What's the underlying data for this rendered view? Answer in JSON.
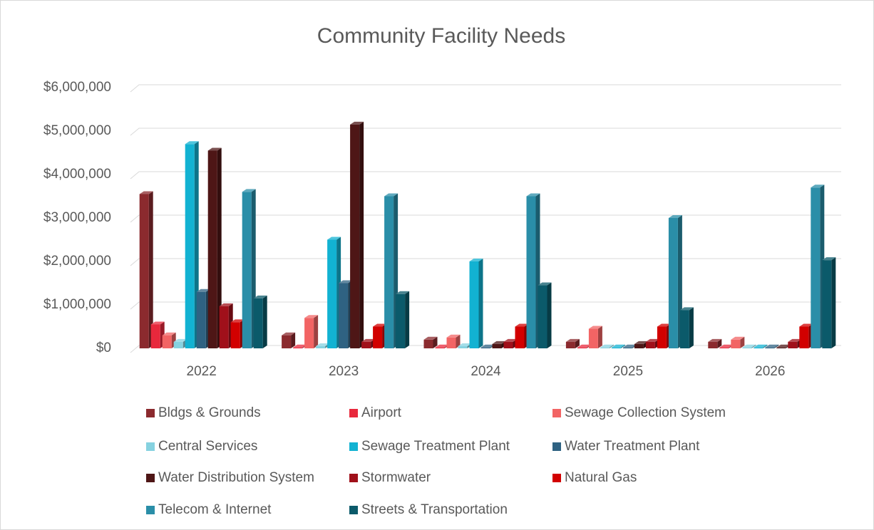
{
  "chart_data": {
    "type": "bar3d",
    "title": "Community Facility Needs",
    "categories": [
      "2022",
      "2023",
      "2024",
      "2025",
      "2026"
    ],
    "series": [
      {
        "name": "Bldgs & Grounds",
        "color": "#8b2a2e",
        "values": [
          3550000,
          300000,
          200000,
          150000,
          150000
        ]
      },
      {
        "name": "Airport",
        "color": "#e8283c",
        "values": [
          550000,
          20000,
          20000,
          20000,
          20000
        ]
      },
      {
        "name": "Sewage Collection System",
        "color": "#f26464",
        "values": [
          300000,
          700000,
          250000,
          450000,
          200000
        ]
      },
      {
        "name": "Central Services",
        "color": "#86d2e0",
        "values": [
          150000,
          50000,
          50000,
          20000,
          20000
        ]
      },
      {
        "name": "Sewage Treatment Plant",
        "color": "#12b2d2",
        "values": [
          4700000,
          2500000,
          2000000,
          20000,
          20000
        ]
      },
      {
        "name": "Water Treatment Plant",
        "color": "#2f6282",
        "values": [
          1300000,
          1500000,
          20000,
          20000,
          20000
        ]
      },
      {
        "name": "Water Distribution System",
        "color": "#4e1616",
        "values": [
          4550000,
          5150000,
          100000,
          100000,
          20000
        ]
      },
      {
        "name": "Stormwater",
        "color": "#a0101a",
        "values": [
          970000,
          150000,
          150000,
          150000,
          150000
        ]
      },
      {
        "name": "Natural Gas",
        "color": "#d20000",
        "values": [
          600000,
          500000,
          500000,
          500000,
          500000
        ]
      },
      {
        "name": "Telecom & Internet",
        "color": "#2a8ea8",
        "values": [
          3600000,
          3500000,
          3500000,
          3000000,
          3700000
        ]
      },
      {
        "name": "Streets & Transportation",
        "color": "#0b5a6a",
        "values": [
          1150000,
          1250000,
          1450000,
          880000,
          2030000
        ]
      }
    ],
    "ylim": [
      0,
      6000000
    ],
    "yticks": [
      {
        "value": 0,
        "label": "$0"
      },
      {
        "value": 1000000,
        "label": "$1,000,000"
      },
      {
        "value": 2000000,
        "label": "$2,000,000"
      },
      {
        "value": 3000000,
        "label": "$3,000,000"
      },
      {
        "value": 4000000,
        "label": "$4,000,000"
      },
      {
        "value": 5000000,
        "label": "$5,000,000"
      },
      {
        "value": 6000000,
        "label": "$6,000,000"
      }
    ],
    "grid": true,
    "legend": "bottom"
  }
}
